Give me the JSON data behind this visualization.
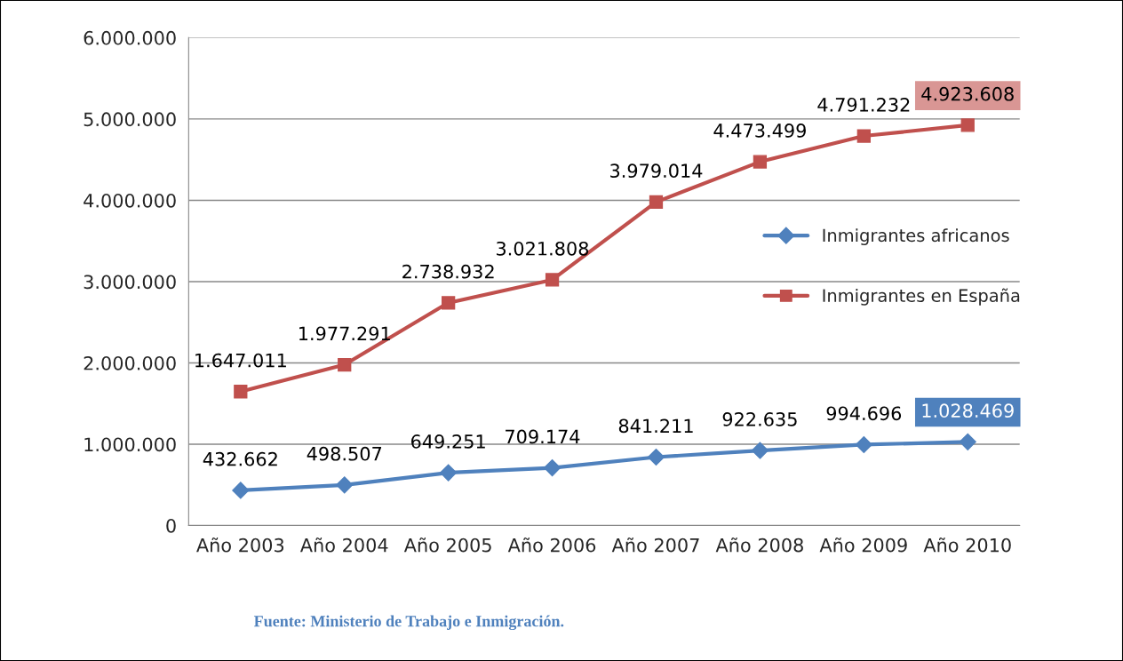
{
  "chart_data": {
    "type": "line",
    "categories": [
      "Año 2003",
      "Año 2004",
      "Año 2005",
      "Año 2006",
      "Año 2007",
      "Año 2008",
      "Año 2009",
      "Año 2010"
    ],
    "series": [
      {
        "name": "Inmigrantes africanos",
        "color": "#4f81bd",
        "marker": "diamond",
        "values": [
          432662,
          498507,
          649251,
          709174,
          841211,
          922635,
          994696,
          1028469
        ],
        "value_labels": [
          "432.662",
          "498.507",
          "649.251",
          "709.174",
          "841.211",
          "922.635",
          "994.696",
          "1.028.469"
        ]
      },
      {
        "name": "Inmigrantes en España",
        "color": "#c0504d",
        "marker": "square",
        "values": [
          1647011,
          1977291,
          2738932,
          3021808,
          3979014,
          4473499,
          4791232,
          4923608
        ],
        "value_labels": [
          "1.647.011",
          "1.977.291",
          "2.738.932",
          "3.021.808",
          "3.979.014",
          "4.473.499",
          "4.791.232",
          "4.923.608"
        ]
      }
    ],
    "ylim": [
      0,
      6000000
    ],
    "yticks": [
      0,
      {
        "value": 1000000,
        "label": "1.000.000"
      },
      {
        "value": 2000000,
        "label": "2.000.000"
      },
      {
        "value": 3000000,
        "label": "3.000.000"
      },
      {
        "value": 4000000,
        "label": "4.000.000"
      },
      {
        "value": 5000000,
        "label": "5.000.000"
      },
      {
        "value": 6000000,
        "label": "6.000.000"
      }
    ],
    "grid": "y",
    "legend": "right",
    "line_style": "solid",
    "annotations": [
      "Fuente: Ministerio de Trabajo e Inmigración."
    ]
  }
}
